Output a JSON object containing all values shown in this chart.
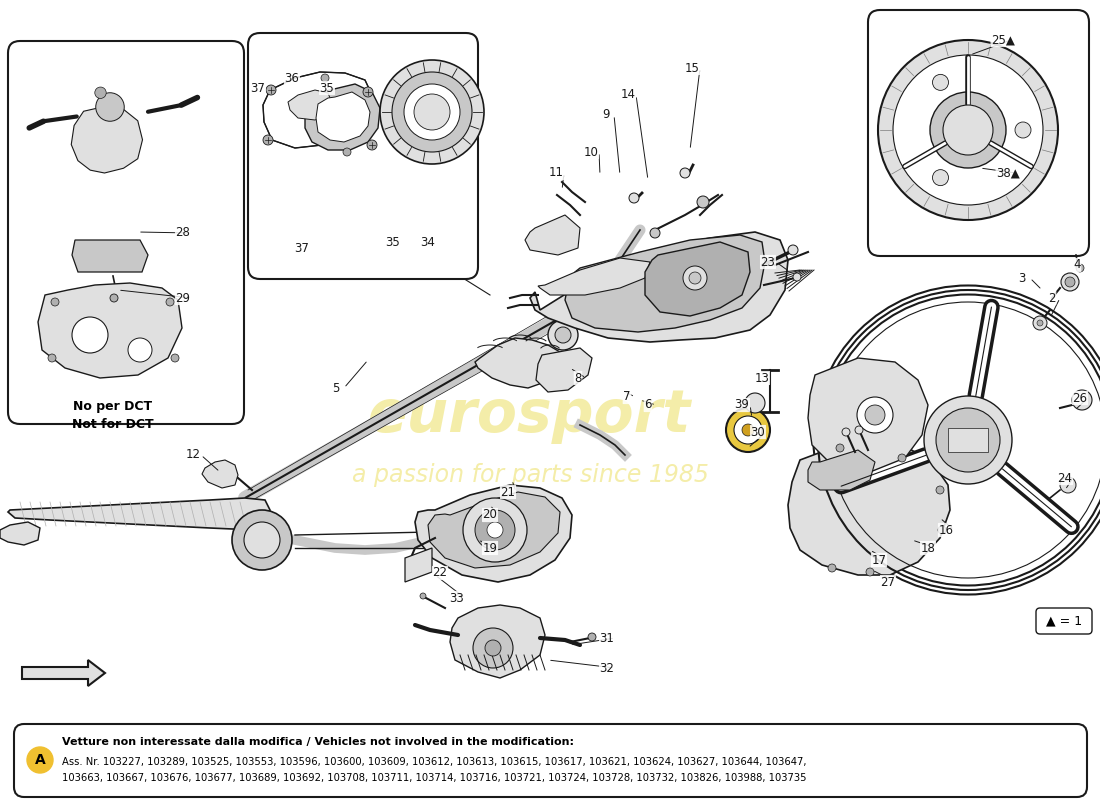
{
  "background_color": "#ffffff",
  "watermark1": "eurosport",
  "watermark2": "a passion for parts since 1985",
  "watermark_color": "#e8d840",
  "watermark_alpha": 0.45,
  "note_text": "No per DCT\nNot for DCT",
  "bottom_title": "Vetture non interessate dalla modifica / Vehicles not involved in the modification:",
  "bottom_content": "Ass. Nr. 103227, 103289, 103525, 103553, 103596, 103600, 103609, 103612, 103613, 103615, 103617, 103621, 103624, 103627, 103644, 103647,\n103663, 103667, 103676, 103677, 103689, 103692, 103708, 103711, 103714, 103716, 103721, 103724, 103728, 103732, 103826, 103988, 103735",
  "circle_a_color": "#f0c030",
  "legend": "▲ = 1",
  "lc": "#1a1a1a",
  "gray1": "#c8c8c8",
  "gray2": "#e0e0e0",
  "gray3": "#b0b0b0",
  "label_positions": [
    [
      "2",
      1052,
      298
    ],
    [
      "3",
      1022,
      278
    ],
    [
      "4",
      1077,
      265
    ],
    [
      "5",
      336,
      388
    ],
    [
      "6",
      648,
      405
    ],
    [
      "7",
      627,
      397
    ],
    [
      "8",
      578,
      378
    ],
    [
      "9",
      606,
      115
    ],
    [
      "10",
      591,
      152
    ],
    [
      "11",
      556,
      173
    ],
    [
      "12",
      193,
      455
    ],
    [
      "13",
      762,
      378
    ],
    [
      "14",
      628,
      95
    ],
    [
      "15",
      692,
      68
    ],
    [
      "16",
      946,
      530
    ],
    [
      "17",
      879,
      560
    ],
    [
      "18",
      928,
      548
    ],
    [
      "19",
      490,
      548
    ],
    [
      "20",
      490,
      515
    ],
    [
      "21",
      508,
      492
    ],
    [
      "22",
      440,
      573
    ],
    [
      "23",
      768,
      262
    ],
    [
      "24",
      1065,
      478
    ],
    [
      "25▲",
      1003,
      40
    ],
    [
      "26",
      1080,
      398
    ],
    [
      "27",
      888,
      582
    ],
    [
      "28",
      183,
      233
    ],
    [
      "29",
      183,
      298
    ],
    [
      "30",
      758,
      432
    ],
    [
      "31",
      607,
      638
    ],
    [
      "32",
      607,
      668
    ],
    [
      "33",
      457,
      598
    ],
    [
      "34",
      428,
      242
    ],
    [
      "35",
      327,
      88
    ],
    [
      "35",
      393,
      243
    ],
    [
      "36",
      292,
      78
    ],
    [
      "37",
      258,
      88
    ],
    [
      "37",
      302,
      248
    ],
    [
      "38▲",
      1008,
      173
    ],
    [
      "39",
      742,
      405
    ]
  ]
}
